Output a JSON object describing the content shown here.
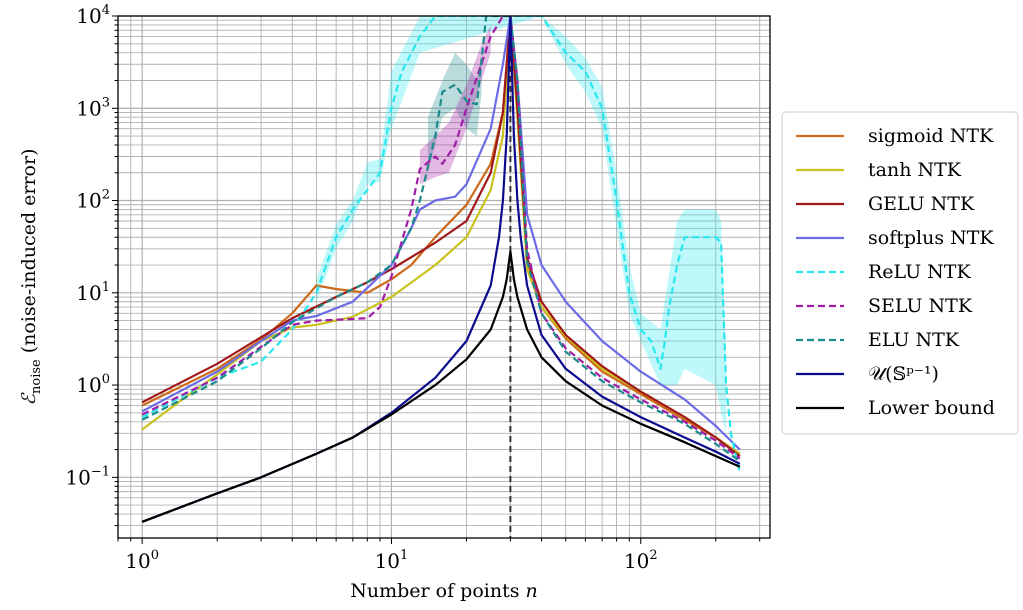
{
  "chart_data": {
    "type": "line",
    "title": "",
    "xlabel": "Number of points n",
    "ylabel": "E_noise (noise-induced error)",
    "xlabel_text": "Number of points ",
    "xlabel_var": "n",
    "ylabel_symbol": "ℰ",
    "ylabel_sub": "noise",
    "ylabel_text": "(noise-induced error)",
    "xscale": "log",
    "yscale": "log",
    "xlim": [
      0.8,
      330
    ],
    "ylim": [
      0.022,
      10000
    ],
    "grid": true,
    "legend_position": "outside-right",
    "x_ticks": [
      {
        "base": "10",
        "exp": "0",
        "value": 1
      },
      {
        "base": "10",
        "exp": "1",
        "value": 10
      },
      {
        "base": "10",
        "exp": "2",
        "value": 100
      }
    ],
    "y_ticks": [
      {
        "base": "10",
        "exp": "−1",
        "value": 0.1
      },
      {
        "base": "10",
        "exp": "0",
        "value": 1
      },
      {
        "base": "10",
        "exp": "1",
        "value": 10
      },
      {
        "base": "10",
        "exp": "2",
        "value": 100
      },
      {
        "base": "10",
        "exp": "3",
        "value": 1000
      },
      {
        "base": "10",
        "exp": "4",
        "value": 10000
      }
    ],
    "vline_x": 30,
    "series": [
      {
        "name": "sigmoid NTK",
        "color": "#cc6a1a",
        "dash": false,
        "points": [
          [
            1,
            0.6
          ],
          [
            2,
            1.5
          ],
          [
            3,
            3.1
          ],
          [
            4,
            6
          ],
          [
            5,
            12
          ],
          [
            6,
            11
          ],
          [
            8,
            10
          ],
          [
            10,
            14
          ],
          [
            12,
            20
          ],
          [
            15,
            40
          ],
          [
            20,
            90
          ],
          [
            25,
            250
          ],
          [
            28,
            900
          ],
          [
            30,
            10000
          ],
          [
            32,
            1000
          ],
          [
            35,
            22
          ],
          [
            40,
            7
          ],
          [
            50,
            3.2
          ],
          [
            70,
            1.4
          ],
          [
            100,
            0.8
          ],
          [
            150,
            0.42
          ],
          [
            200,
            0.27
          ],
          [
            250,
            0.18
          ]
        ]
      },
      {
        "name": "tanh NTK",
        "color": "#c9c21e",
        "dash": false,
        "points": [
          [
            1,
            0.33
          ],
          [
            1.5,
            0.75
          ],
          [
            2,
            1.3
          ],
          [
            3,
            3
          ],
          [
            4,
            4.2
          ],
          [
            5,
            4.5
          ],
          [
            7,
            5.5
          ],
          [
            10,
            9
          ],
          [
            15,
            20
          ],
          [
            20,
            40
          ],
          [
            25,
            130
          ],
          [
            28,
            500
          ],
          [
            30,
            10000
          ],
          [
            32,
            800
          ],
          [
            35,
            18
          ],
          [
            40,
            7
          ],
          [
            50,
            3.4
          ],
          [
            70,
            1.5
          ],
          [
            100,
            0.85
          ],
          [
            150,
            0.45
          ],
          [
            200,
            0.27
          ],
          [
            250,
            0.18
          ]
        ]
      },
      {
        "name": "GELU NTK",
        "color": "#a01818",
        "dash": false,
        "points": [
          [
            1,
            0.65
          ],
          [
            2,
            1.7
          ],
          [
            3,
            3.3
          ],
          [
            4,
            5.3
          ],
          [
            6,
            9
          ],
          [
            8,
            13
          ],
          [
            10,
            18
          ],
          [
            15,
            35
          ],
          [
            20,
            60
          ],
          [
            25,
            200
          ],
          [
            28,
            900
          ],
          [
            30,
            10000
          ],
          [
            32,
            1000
          ],
          [
            35,
            24
          ],
          [
            40,
            8
          ],
          [
            50,
            3.5
          ],
          [
            70,
            1.6
          ],
          [
            100,
            0.85
          ],
          [
            150,
            0.45
          ],
          [
            200,
            0.27
          ],
          [
            250,
            0.17
          ]
        ]
      },
      {
        "name": "softplus NTK",
        "color": "#6b6be8",
        "dash": false,
        "points": [
          [
            1,
            0.52
          ],
          [
            2,
            1.4
          ],
          [
            3,
            3
          ],
          [
            4,
            5
          ],
          [
            5,
            5.6
          ],
          [
            7,
            8
          ],
          [
            10,
            20
          ],
          [
            12,
            50
          ],
          [
            13,
            80
          ],
          [
            15,
            100
          ],
          [
            18,
            110
          ],
          [
            20,
            150
          ],
          [
            25,
            600
          ],
          [
            28,
            3000
          ],
          [
            30,
            10000
          ],
          [
            32,
            2000
          ],
          [
            35,
            70
          ],
          [
            40,
            20
          ],
          [
            50,
            8
          ],
          [
            70,
            3
          ],
          [
            100,
            1.4
          ],
          [
            150,
            0.7
          ],
          [
            200,
            0.36
          ],
          [
            250,
            0.2
          ]
        ]
      },
      {
        "name": "ReLU NTK",
        "color": "#28e8ee",
        "dash": true,
        "points": [
          [
            1,
            0.45
          ],
          [
            2,
            1.2
          ],
          [
            3,
            1.8
          ],
          [
            4,
            4
          ],
          [
            5,
            10
          ],
          [
            6,
            40
          ],
          [
            7,
            80
          ],
          [
            9,
            200
          ],
          [
            10,
            1000
          ],
          [
            11,
            2500
          ],
          [
            13,
            6000
          ],
          [
            15,
            10000
          ],
          [
            40,
            10000
          ],
          [
            50,
            4000
          ],
          [
            60,
            2500
          ],
          [
            70,
            1000
          ],
          [
            80,
            100
          ],
          [
            85,
            30
          ],
          [
            90,
            10
          ],
          [
            100,
            4
          ],
          [
            110,
            3
          ],
          [
            120,
            1.5
          ],
          [
            125,
            3
          ],
          [
            130,
            7
          ],
          [
            140,
            20
          ],
          [
            150,
            40
          ],
          [
            200,
            40
          ],
          [
            210,
            35
          ],
          [
            220,
            1
          ],
          [
            230,
            0.3
          ],
          [
            250,
            0.11
          ]
        ]
      },
      {
        "name": "SELU NTK",
        "color": "#a01ba7",
        "dash": true,
        "points": [
          [
            1,
            0.48
          ],
          [
            2,
            1.2
          ],
          [
            3,
            2.6
          ],
          [
            4,
            4.5
          ],
          [
            5,
            5
          ],
          [
            6,
            5.1
          ],
          [
            8,
            5.3
          ],
          [
            9,
            7
          ],
          [
            10,
            15
          ],
          [
            12,
            80
          ],
          [
            13,
            220
          ],
          [
            15,
            300
          ],
          [
            16,
            250
          ],
          [
            18,
            400
          ],
          [
            20,
            1000
          ],
          [
            25,
            6000
          ],
          [
            28,
            10000
          ],
          [
            30,
            10000
          ],
          [
            32,
            2000
          ],
          [
            35,
            30
          ],
          [
            40,
            6
          ],
          [
            50,
            2.5
          ],
          [
            70,
            1.2
          ],
          [
            100,
            0.7
          ],
          [
            150,
            0.4
          ],
          [
            200,
            0.25
          ],
          [
            250,
            0.16
          ]
        ]
      },
      {
        "name": "ELU NTK",
        "color": "#1a8a8a",
        "dash": true,
        "points": [
          [
            1,
            0.42
          ],
          [
            2,
            1.1
          ],
          [
            3,
            2.5
          ],
          [
            4,
            4.8
          ],
          [
            6,
            9
          ],
          [
            8,
            13
          ],
          [
            10,
            20
          ],
          [
            12,
            50
          ],
          [
            13,
            100
          ],
          [
            15,
            500
          ],
          [
            16,
            1500
          ],
          [
            18,
            1800
          ],
          [
            20,
            1200
          ],
          [
            22,
            1100
          ],
          [
            24,
            10000
          ],
          [
            30,
            10000
          ],
          [
            32,
            2000
          ],
          [
            35,
            22
          ],
          [
            40,
            6
          ],
          [
            50,
            2.3
          ],
          [
            70,
            1.1
          ],
          [
            100,
            0.65
          ],
          [
            150,
            0.38
          ],
          [
            200,
            0.23
          ],
          [
            250,
            0.15
          ]
        ]
      },
      {
        "name": "𝒰(𝕊ᵖ⁻¹)",
        "color": "#0b0b8e",
        "dash": false,
        "points": [
          [
            1,
            0.033
          ],
          [
            2,
            0.067
          ],
          [
            3,
            0.1
          ],
          [
            5,
            0.18
          ],
          [
            7,
            0.27
          ],
          [
            10,
            0.5
          ],
          [
            15,
            1.2
          ],
          [
            20,
            3
          ],
          [
            25,
            12
          ],
          [
            27,
            40
          ],
          [
            28,
            100
          ],
          [
            29,
            500
          ],
          [
            30,
            10000
          ],
          [
            31,
            500
          ],
          [
            32,
            100
          ],
          [
            33,
            40
          ],
          [
            35,
            12
          ],
          [
            40,
            3.5
          ],
          [
            50,
            1.5
          ],
          [
            70,
            0.75
          ],
          [
            100,
            0.45
          ],
          [
            150,
            0.27
          ],
          [
            200,
            0.19
          ],
          [
            250,
            0.14
          ]
        ]
      },
      {
        "name": "Lower bound",
        "color": "#000000",
        "dash": false,
        "points": [
          [
            1,
            0.033
          ],
          [
            2,
            0.067
          ],
          [
            3,
            0.1
          ],
          [
            5,
            0.18
          ],
          [
            7,
            0.27
          ],
          [
            10,
            0.48
          ],
          [
            15,
            1
          ],
          [
            20,
            1.9
          ],
          [
            25,
            4
          ],
          [
            28,
            9
          ],
          [
            29,
            14
          ],
          [
            30,
            28
          ],
          [
            31,
            14
          ],
          [
            32,
            9
          ],
          [
            35,
            4
          ],
          [
            40,
            2
          ],
          [
            50,
            1.1
          ],
          [
            70,
            0.6
          ],
          [
            100,
            0.38
          ],
          [
            150,
            0.24
          ],
          [
            200,
            0.17
          ],
          [
            250,
            0.13
          ]
        ]
      }
    ],
    "bands": [
      {
        "series": "ReLU NTK",
        "color": "#28e8ee",
        "opacity": 0.3,
        "x": [
          5,
          6,
          7,
          8,
          9,
          10,
          13,
          40,
          50,
          60,
          70,
          80,
          90,
          100,
          120,
          140,
          150,
          200,
          210,
          220
        ],
        "lower": [
          8,
          30,
          60,
          150,
          160,
          600,
          4000,
          10000,
          3000,
          1500,
          600,
          50,
          6,
          3,
          1,
          1,
          1.5,
          1,
          0.5,
          0.3
        ],
        "upper": [
          14,
          55,
          100,
          260,
          280,
          2500,
          10000,
          10000,
          6000,
          3500,
          1700,
          200,
          20,
          6,
          4,
          60,
          80,
          80,
          60,
          2
        ]
      },
      {
        "series": "ELU NTK",
        "color": "#1a8a8a",
        "opacity": 0.3,
        "x": [
          14,
          16,
          18,
          20,
          22,
          23
        ],
        "lower": [
          200,
          800,
          1000,
          600,
          500,
          1500
        ],
        "upper": [
          800,
          2000,
          4000,
          3000,
          2000,
          4000
        ]
      },
      {
        "series": "SELU NTK",
        "color": "#a01ba7",
        "opacity": 0.3,
        "x": [
          13,
          15,
          17,
          20,
          23,
          25
        ],
        "lower": [
          150,
          180,
          200,
          600,
          2000,
          4000
        ],
        "upper": [
          350,
          500,
          700,
          1800,
          5000,
          8000
        ]
      }
    ]
  }
}
